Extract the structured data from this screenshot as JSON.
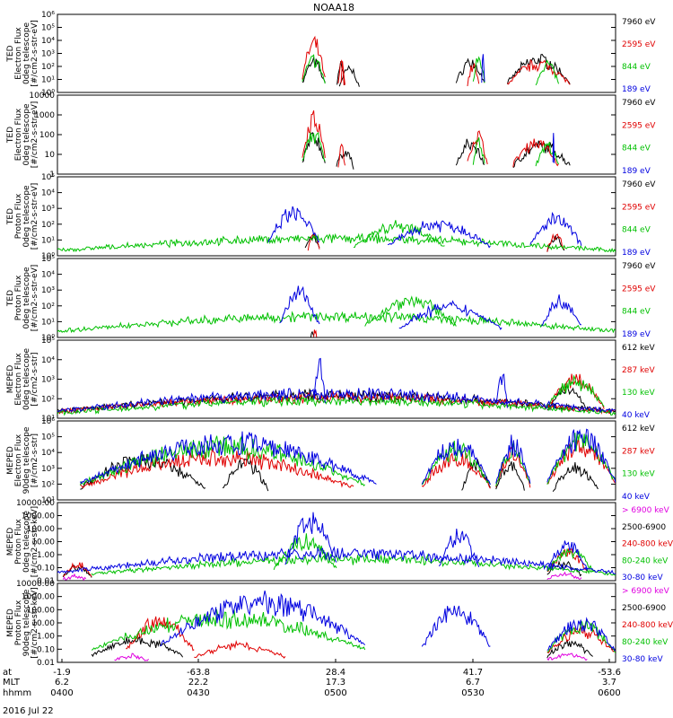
{
  "title": "NOAA18",
  "date_label": "2016 Jul 22",
  "x_axis": {
    "row_labels": [
      "at",
      "MLT",
      "hhmm"
    ],
    "columns": [
      {
        "lat": "-1.9",
        "mlt": "6.2",
        "hhmm": "0400"
      },
      {
        "lat": "-63.8",
        "mlt": "22.2",
        "hhmm": "0430"
      },
      {
        "lat": "28.4",
        "mlt": "17.3",
        "hhmm": "0500"
      },
      {
        "lat": "41.7",
        "mlt": "6.7",
        "hhmm": "0530"
      },
      {
        "lat": "-53.6",
        "mlt": "3.7",
        "hhmm": "0600"
      }
    ]
  },
  "colors": {
    "black": "#000000",
    "red": "#e00000",
    "green": "#00c000",
    "blue": "#0000e0",
    "magenta": "#e000e0"
  },
  "chart_data": [
    {
      "type": "line",
      "instrument": "TED",
      "ylabel_lines": [
        "TED",
        "Electron Flux",
        "0deg telescope",
        "[#/cm2-s-str-eV]"
      ],
      "scale": "log",
      "ylim": [
        1,
        1000000
      ],
      "yticks": [
        {
          "v": 1,
          "t": "10⁰"
        },
        {
          "v": 10,
          "t": "10¹"
        },
        {
          "v": 100,
          "t": "10²"
        },
        {
          "v": 1000,
          "t": "10³"
        },
        {
          "v": 10000,
          "t": "10⁴"
        },
        {
          "v": 100000,
          "t": "10⁵"
        },
        {
          "v": 1000000,
          "t": "10⁶"
        }
      ],
      "series": [
        {
          "name": "7960 eV",
          "color": "#000000",
          "bursts": [
            [
              4.3,
              4.7,
              2.7
            ],
            [
              4.91,
              5.04,
              2.6
            ],
            [
              4.95,
              5.3,
              2.1
            ],
            [
              7.0,
              7.5,
              2.8
            ],
            [
              7.9,
              9.0,
              3.0
            ]
          ]
        },
        {
          "name": "2595 eV",
          "color": "#e00000",
          "bursts": [
            [
              4.3,
              4.7,
              4.4
            ],
            [
              4.93,
              5.05,
              2.6
            ],
            [
              4.98,
              5.03,
              2.6
            ],
            [
              7.2,
              7.4,
              2.4
            ],
            [
              7.9,
              9.0,
              2.6
            ]
          ]
        },
        {
          "name": "844 eV",
          "color": "#00c000",
          "bursts": [
            [
              4.3,
              4.7,
              3.0
            ],
            [
              7.3,
              7.5,
              3.1
            ],
            [
              8.4,
              8.8,
              2.6
            ]
          ]
        },
        {
          "name": "189 eV",
          "color": "#0000e0",
          "bursts": [
            [
              7.45,
              7.5,
              3.3
            ]
          ]
        }
      ]
    },
    {
      "type": "line",
      "instrument": "TED",
      "ylabel_lines": [
        "TED",
        "Electron Flux",
        "0deg telescope",
        "[#/cm2-s-str-eV]"
      ],
      "scale": "log",
      "ylim": [
        1,
        10000
      ],
      "yticks": [
        {
          "v": 1,
          "t": "1"
        },
        {
          "v": 10,
          "t": "10"
        },
        {
          "v": 100,
          "t": "100"
        },
        {
          "v": 1000,
          "t": "1000"
        },
        {
          "v": 10000,
          "t": "10000"
        }
      ],
      "series": [
        {
          "name": "7960 eV",
          "color": "#000000",
          "bursts": [
            [
              4.3,
              4.7,
              2.2
            ],
            [
              4.9,
              5.2,
              1.4
            ],
            [
              7.0,
              7.5,
              1.8
            ],
            [
              8.0,
              9.0,
              1.7
            ]
          ]
        },
        {
          "name": "2595 eV",
          "color": "#e00000",
          "bursts": [
            [
              4.3,
              4.7,
              3.4
            ],
            [
              4.93,
              5.05,
              1.6
            ],
            [
              7.2,
              7.55,
              2.3
            ],
            [
              8.0,
              8.8,
              1.9
            ]
          ]
        },
        {
          "name": "844 eV",
          "color": "#00c000",
          "bursts": [
            [
              4.3,
              4.7,
              2.4
            ],
            [
              7.3,
              7.5,
              2.0
            ],
            [
              8.4,
              8.8,
              1.7
            ]
          ]
        },
        {
          "name": "189 eV",
          "color": "#0000e0",
          "bursts": [
            [
              8.7,
              8.72,
              2.2
            ]
          ]
        }
      ]
    },
    {
      "type": "line",
      "instrument": "TED",
      "ylabel_lines": [
        "TED",
        "Proton Flux",
        "0deg telescope",
        "[#/cm2-s-str-eV]"
      ],
      "scale": "log",
      "ylim": [
        1,
        100000
      ],
      "yticks": [
        {
          "v": 1,
          "t": "10⁰"
        },
        {
          "v": 10,
          "t": "10¹"
        },
        {
          "v": 100,
          "t": "10²"
        },
        {
          "v": 1000,
          "t": "10³"
        },
        {
          "v": 10000,
          "t": "10⁴"
        },
        {
          "v": 100000,
          "t": "10⁵"
        }
      ],
      "series": [
        {
          "name": "7960 eV",
          "color": "#000000",
          "bursts": [
            [
              4.35,
              4.6,
              1.6
            ],
            [
              8.6,
              8.9,
              1.3
            ]
          ]
        },
        {
          "name": "2595 eV",
          "color": "#e00000",
          "bursts": [
            [
              4.4,
              4.6,
              1.7
            ],
            [
              8.6,
              8.9,
              1.5
            ]
          ]
        },
        {
          "name": "844 eV",
          "color": "#00c000",
          "bursts": [
            [
              0,
              9.8,
              1.3
            ],
            [
              5.2,
              6.8,
              2.3
            ]
          ]
        },
        {
          "name": "189 eV",
          "color": "#0000e0",
          "bursts": [
            [
              3.7,
              4.6,
              3.2
            ],
            [
              5.8,
              7.6,
              2.4
            ],
            [
              8.3,
              9.2,
              2.7
            ]
          ]
        }
      ]
    },
    {
      "type": "line",
      "instrument": "TED",
      "ylabel_lines": [
        "TED",
        "Proton Flux",
        "0deg telescope",
        "[#/cm2-s-str-eV]"
      ],
      "scale": "log",
      "ylim": [
        1,
        100000
      ],
      "yticks": [
        {
          "v": 1,
          "t": "10⁰"
        },
        {
          "v": 10,
          "t": "10¹"
        },
        {
          "v": 100,
          "t": "10²"
        },
        {
          "v": 1000,
          "t": "10³"
        },
        {
          "v": 10000,
          "t": "10⁴"
        },
        {
          "v": 100000,
          "t": "10⁵"
        }
      ],
      "series": [
        {
          "name": "7960 eV",
          "color": "#000000",
          "bursts": [
            [
              4.45,
              4.5,
              0.4
            ]
          ]
        },
        {
          "name": "2595 eV",
          "color": "#e00000",
          "bursts": [
            [
              4.5,
              4.55,
              0.6
            ]
          ]
        },
        {
          "name": "844 eV",
          "color": "#00c000",
          "bursts": [
            [
              0,
              9.8,
              1.6
            ],
            [
              5.4,
              7.0,
              2.8
            ]
          ]
        },
        {
          "name": "189 eV",
          "color": "#0000e0",
          "bursts": [
            [
              3.9,
              4.6,
              3.3
            ],
            [
              6.0,
              7.8,
              2.3
            ],
            [
              8.5,
              9.2,
              2.8
            ]
          ]
        }
      ]
    },
    {
      "type": "line",
      "instrument": "MEPED",
      "ylabel_lines": [
        "MEPED",
        "Electron Flux",
        "0deg telescope",
        "[#/cm2-s-str]"
      ],
      "scale": "log",
      "ylim": [
        10,
        100000
      ],
      "yticks": [
        {
          "v": 10,
          "t": "10¹"
        },
        {
          "v": 100,
          "t": "10²"
        },
        {
          "v": 1000,
          "t": "10³"
        },
        {
          "v": 10000,
          "t": "10⁴"
        },
        {
          "v": 100000,
          "t": "10⁵"
        }
      ],
      "series": [
        {
          "name": "612 keV",
          "color": "#000000",
          "bursts": [
            [
              0,
              9.8,
              2.4
            ],
            [
              8.6,
              9.3,
              2.8
            ]
          ]
        },
        {
          "name": "287 keV",
          "color": "#e00000",
          "bursts": [
            [
              0,
              9.8,
              2.3
            ],
            [
              8.6,
              9.6,
              3.3
            ]
          ]
        },
        {
          "name": "130 keV",
          "color": "#00c000",
          "bursts": [
            [
              0,
              9.8,
              2.1
            ],
            [
              8.6,
              9.6,
              3.2
            ]
          ]
        },
        {
          "name": "40 keV",
          "color": "#0000e0",
          "bursts": [
            [
              0,
              9.8,
              2.5
            ],
            [
              4.5,
              4.7,
              4.6
            ],
            [
              7.7,
              7.9,
              3.6
            ]
          ]
        }
      ]
    },
    {
      "type": "line",
      "instrument": "MEPED",
      "ylabel_lines": [
        "MEPED",
        "Electron Flux",
        "90deg telescope",
        "[#/cm2-s-str]"
      ],
      "scale": "log",
      "ylim": [
        10,
        1000000
      ],
      "yticks": [
        {
          "v": 10,
          "t": "10¹"
        },
        {
          "v": 100,
          "t": "10²"
        },
        {
          "v": 1000,
          "t": "10³"
        },
        {
          "v": 10000,
          "t": "10⁴"
        },
        {
          "v": 100000,
          "t": "10⁵"
        },
        {
          "v": 1000000,
          "t": "10⁶"
        }
      ],
      "series": [
        {
          "name": "612 keV",
          "color": "#000000",
          "bursts": [
            [
              0.4,
              2.6,
              4.0
            ],
            [
              2.9,
              3.7,
              3.7
            ],
            [
              7.1,
              7.6,
              3.7
            ],
            [
              7.7,
              8.2,
              3.6
            ],
            [
              8.7,
              9.5,
              3.4
            ]
          ]
        },
        {
          "name": "287 keV",
          "color": "#e00000",
          "bursts": [
            [
              0.4,
              5.2,
              4.2
            ],
            [
              6.4,
              7.6,
              4.1
            ],
            [
              7.7,
              8.3,
              4.5
            ],
            [
              8.6,
              9.8,
              5.0
            ]
          ]
        },
        {
          "name": "130 keV",
          "color": "#00c000",
          "bursts": [
            [
              0.4,
              5.4,
              5.0
            ],
            [
              6.4,
              7.6,
              4.8
            ],
            [
              7.7,
              8.3,
              4.8
            ],
            [
              8.6,
              9.8,
              5.4
            ]
          ]
        },
        {
          "name": "40 keV",
          "color": "#0000e0",
          "bursts": [
            [
              0.4,
              5.6,
              5.3
            ],
            [
              6.4,
              7.6,
              5.2
            ],
            [
              7.7,
              8.3,
              5.2
            ],
            [
              8.6,
              9.8,
              5.8
            ]
          ]
        }
      ]
    },
    {
      "type": "line",
      "instrument": "MEPED",
      "ylabel_lines": [
        "MEPED",
        "Proton Flux",
        "0deg telescope",
        "[#/cm2-s-str-keV]"
      ],
      "scale": "log",
      "ylim": [
        0.01,
        10000
      ],
      "yticks": [
        {
          "v": 0.01,
          "t": "0.01"
        },
        {
          "v": 0.1,
          "t": "0.10"
        },
        {
          "v": 1,
          "t": "1.00"
        },
        {
          "v": 10,
          "t": "10.00"
        },
        {
          "v": 100,
          "t": "100.00"
        },
        {
          "v": 1000,
          "t": "1000.00"
        },
        {
          "v": 10000,
          "t": "10000.00"
        }
      ],
      "series": [
        {
          "name": "> 6900 keV",
          "color": "#e000e0",
          "bursts": [
            [
              0.1,
              0.5,
              -1.6
            ],
            [
              8.6,
              9.2,
              -1.4
            ]
          ]
        },
        {
          "name": "2500-6900",
          "color": "#000000",
          "bursts": [
            [
              0.1,
              0.6,
              -0.7
            ],
            [
              8.6,
              9.2,
              -0.4
            ]
          ]
        },
        {
          "name": "240-800 keV",
          "color": "#e00000",
          "bursts": [
            [
              0.1,
              0.6,
              -0.5
            ],
            [
              8.6,
              9.3,
              0.6
            ]
          ]
        },
        {
          "name": "80-240 keV",
          "color": "#00c000",
          "bursts": [
            [
              3.8,
              4.9,
              1.6
            ],
            [
              0.6,
              9.8,
              0.0
            ],
            [
              8.6,
              9.4,
              0.8
            ]
          ]
        },
        {
          "name": "30-80 keV",
          "color": "#0000e0",
          "bursts": [
            [
              4.0,
              4.9,
              3.4
            ],
            [
              6.7,
              7.4,
              2.2
            ],
            [
              0,
              9.8,
              0.5
            ],
            [
              8.6,
              9.3,
              1.3
            ]
          ]
        }
      ]
    },
    {
      "type": "line",
      "instrument": "MEPED",
      "ylabel_lines": [
        "MEPED",
        "Proton Flux",
        "90deg telescope",
        "[#/cm2-s-str-keV]"
      ],
      "scale": "log",
      "ylim": [
        0.01,
        10000
      ],
      "yticks": [
        {
          "v": 0.01,
          "t": "0.01"
        },
        {
          "v": 0.1,
          "t": "0.10"
        },
        {
          "v": 1,
          "t": "1.00"
        },
        {
          "v": 10,
          "t": "10.00"
        },
        {
          "v": 100,
          "t": "100.00"
        },
        {
          "v": 1000,
          "t": "1000.00"
        },
        {
          "v": 10000,
          "t": "10000.00"
        }
      ],
      "series": [
        {
          "name": "> 6900 keV",
          "color": "#e000e0",
          "bursts": [
            [
              1.0,
              1.6,
              -1.4
            ],
            [
              8.6,
              9.3,
              -1.3
            ]
          ]
        },
        {
          "name": "2500-6900",
          "color": "#000000",
          "bursts": [
            [
              0.6,
              2.2,
              0.0
            ],
            [
              8.6,
              9.4,
              -0.3
            ]
          ]
        },
        {
          "name": "240-800 keV",
          "color": "#e00000",
          "bursts": [
            [
              1.2,
              2.4,
              1.7
            ],
            [
              2.4,
              4.0,
              -0.5
            ],
            [
              8.6,
              9.8,
              0.8
            ]
          ]
        },
        {
          "name": "80-240 keV",
          "color": "#00c000",
          "bursts": [
            [
              0.6,
              5.4,
              2.0
            ],
            [
              8.6,
              9.8,
              1.2
            ]
          ]
        },
        {
          "name": "30-80 keV",
          "color": "#0000e0",
          "bursts": [
            [
              1.8,
              5.4,
              3.4
            ],
            [
              6.4,
              7.6,
              2.6
            ],
            [
              8.6,
              9.8,
              1.6
            ]
          ]
        }
      ]
    }
  ]
}
